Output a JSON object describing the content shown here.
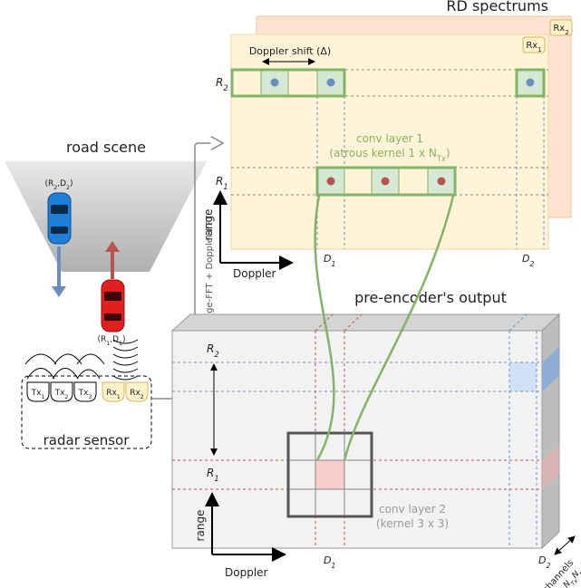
{
  "rd_spectrums": {
    "title": "RD spectrums",
    "rx2": [
      "Rx",
      {
        "sub": "2"
      }
    ],
    "rx1": [
      "Rx",
      {
        "sub": "1"
      }
    ],
    "doppler_shift": "Doppler shift (Δ)",
    "r2": [
      "R",
      {
        "sub": "2"
      }
    ],
    "r1": [
      "R",
      {
        "sub": "1"
      }
    ],
    "conv_layer": "conv layer 1",
    "kernel": [
      "(atrous kernel 1 x N",
      {
        "sub": "Tx"
      },
      ")"
    ],
    "range_axis": "range",
    "doppler_axis": "Doppler",
    "d1": [
      "D",
      {
        "sub": "1"
      }
    ],
    "d2": [
      "D",
      {
        "sub": "2"
      }
    ]
  },
  "road_scene": {
    "title": "road scene",
    "car_far": [
      "(R",
      {
        "sub": "2"
      },
      ",D",
      {
        "sub": "2"
      },
      ")"
    ],
    "car_near": [
      "(R",
      {
        "sub": "1"
      },
      ",D",
      {
        "sub": "1"
      },
      ")"
    ]
  },
  "radar_sensor": {
    "title": "radar sensor",
    "antennas": [
      [
        "Tx",
        {
          "sub": "1"
        }
      ],
      [
        "Tx",
        {
          "sub": "2"
        }
      ],
      [
        "Tx",
        {
          "sub": "3"
        }
      ],
      [
        "Rx",
        {
          "sub": "1"
        }
      ],
      [
        "Rx",
        {
          "sub": "2"
        }
      ]
    ]
  },
  "processing": "range-FFT + Doppler-FFT",
  "pre_encoder": {
    "title": "pre-encoder's output",
    "r2": [
      "R",
      {
        "sub": "2"
      }
    ],
    "r1": [
      "R",
      {
        "sub": "1"
      }
    ],
    "conv_layer": "conv layer 2",
    "kernel": "(kernel 3 x 3)",
    "range_axis": "range",
    "doppler_axis": "Doppler",
    "d1": [
      "D",
      {
        "sub": "1"
      }
    ],
    "d2": [
      "D",
      {
        "sub": "2"
      }
    ],
    "channels": "channels",
    "channels_note": [
      "(# < N",
      {
        "sub": "Tx"
      },
      "N",
      {
        "sub": "Rx"
      },
      ")"
    ]
  }
}
